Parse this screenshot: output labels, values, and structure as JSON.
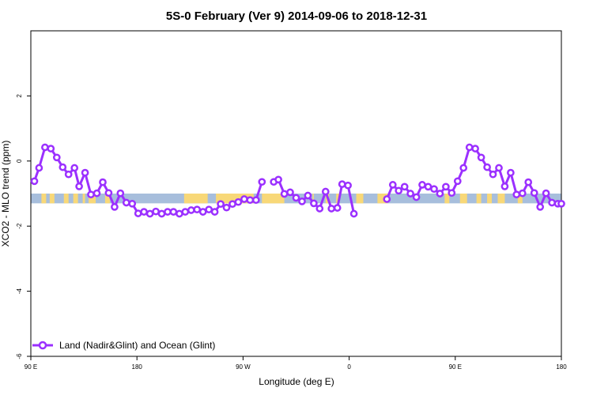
{
  "chart_data": {
    "type": "line",
    "title": "5S-0 February (Ver 9)   2014-09-06 to 2018-12-31",
    "xlabel": "Longitude (deg E)",
    "ylabel": "XCO2 - MLO trend (ppm)",
    "xlim": [
      90,
      540
    ],
    "ylim": [
      -6,
      4
    ],
    "x_ticks": [
      {
        "value": 90,
        "label": "90 E"
      },
      {
        "value": 180,
        "label": "180"
      },
      {
        "value": 270,
        "label": "90 W"
      },
      {
        "value": 360,
        "label": "0"
      },
      {
        "value": 450,
        "label": "90 E"
      },
      {
        "value": 540,
        "label": "180"
      }
    ],
    "y_ticks": [
      {
        "value": -6,
        "label": "-6"
      },
      {
        "value": -4,
        "label": "-4"
      },
      {
        "value": -2,
        "label": "-2"
      },
      {
        "value": 0,
        "label": "0"
      },
      {
        "value": 2,
        "label": "2"
      }
    ],
    "grid": false,
    "legend": {
      "position": "bottom-left",
      "label": "Land (Nadir&Glint) and Ocean (Glint)"
    },
    "colors": {
      "series": "#9b30ff",
      "ocean": "#a7bedc",
      "land": "#f8d878"
    },
    "surface_band": {
      "y_range": [
        -1.3,
        -1.0
      ],
      "land_segments": [
        [
          99,
          103
        ],
        [
          106,
          110
        ],
        [
          118,
          122
        ],
        [
          126,
          130
        ],
        [
          134,
          136
        ],
        [
          139,
          145
        ],
        [
          153,
          157
        ],
        [
          220,
          240
        ],
        [
          247,
          279
        ],
        [
          286,
          305
        ],
        [
          329,
          330
        ],
        [
          340,
          343
        ],
        [
          349,
          352
        ],
        [
          366,
          372
        ],
        [
          384,
          393
        ],
        [
          441,
          445
        ],
        [
          454,
          460
        ],
        [
          468,
          472
        ],
        [
          477,
          481
        ],
        [
          486,
          492
        ],
        [
          503,
          507
        ]
      ]
    },
    "series": [
      {
        "name": "Land (Nadir&Glint) and Ocean (Glint)",
        "segments": [
          {
            "x": [
              93,
              97,
              102,
              107,
              112,
              117,
              122,
              127,
              131,
              136,
              141,
              146,
              151,
              156,
              161,
              166,
              171,
              176,
              181,
              186,
              191,
              196,
              201,
              206,
              211,
              216,
              221,
              226,
              231,
              236,
              241,
              246,
              251,
              256,
              261,
              266,
              271,
              276,
              281,
              286,
              291
            ],
            "y": [
              -0.62,
              -0.21,
              0.42,
              0.38,
              0.11,
              -0.19,
              -0.41,
              -0.21,
              -0.78,
              -0.36,
              -1.03,
              -0.99,
              -0.65,
              -0.98,
              -1.41,
              -0.99,
              -1.28,
              -1.31,
              -1.61,
              -1.56,
              -1.62,
              -1.55,
              -1.62,
              -1.56,
              -1.56,
              -1.62,
              -1.56,
              -1.51,
              -1.49,
              -1.56,
              -1.49,
              -1.56,
              -1.32,
              -1.43,
              -1.32,
              -1.26,
              -1.17,
              -1.2,
              -1.2,
              -0.64,
              null
            ]
          },
          {
            "x": [
              296,
              300,
              305,
              310,
              315,
              320,
              325,
              330,
              335,
              340,
              345,
              350,
              354,
              359,
              364
            ],
            "y": [
              -0.64,
              -0.57,
              -1.01,
              -0.96,
              -1.13,
              -1.24,
              -1.06,
              -1.3,
              -1.46,
              -0.94,
              -1.46,
              -1.44,
              -0.71,
              -0.75,
              -1.62
            ]
          },
          {
            "x": [
              392,
              397,
              402,
              407,
              412,
              417,
              422,
              427,
              432,
              437,
              442,
              447,
              452,
              457,
              462,
              467,
              472,
              477,
              482,
              487,
              492,
              497,
              502,
              507,
              512,
              517,
              522,
              527,
              532,
              537,
              540
            ],
            "y": [
              -1.17,
              -0.73,
              -0.91,
              -0.79,
              -1.0,
              -1.11,
              -0.73,
              -0.79,
              -0.86,
              -1.0,
              -0.79,
              -0.98,
              -0.62,
              -0.21,
              0.42,
              0.38,
              0.11,
              -0.19,
              -0.41,
              -0.21,
              -0.78,
              -0.36,
              -1.03,
              -0.99,
              -0.65,
              -0.98,
              -1.41,
              -0.99,
              -1.28,
              -1.31,
              -1.31
            ]
          }
        ]
      }
    ]
  }
}
